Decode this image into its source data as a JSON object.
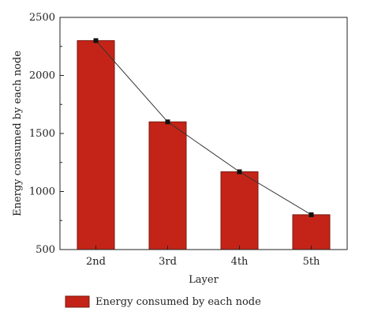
{
  "chart_data": {
    "type": "bar",
    "categories": [
      "2nd",
      "3rd",
      "4th",
      "5th"
    ],
    "series": [
      {
        "name": "Energy consumed by each node",
        "values": [
          2300,
          1600,
          1170,
          800
        ]
      }
    ],
    "overlay_line": true,
    "title": "",
    "xlabel": "Layer",
    "ylabel": "Energy consumed by each node",
    "ylim": [
      500,
      2500
    ],
    "yticks": [
      500,
      1000,
      1500,
      2000,
      2500
    ],
    "grid": false,
    "legend_position": "bottom",
    "colors": {
      "bar": "#c42417",
      "bar_edge": "#7a1a12",
      "line": "#333333",
      "marker": "#111111"
    }
  }
}
